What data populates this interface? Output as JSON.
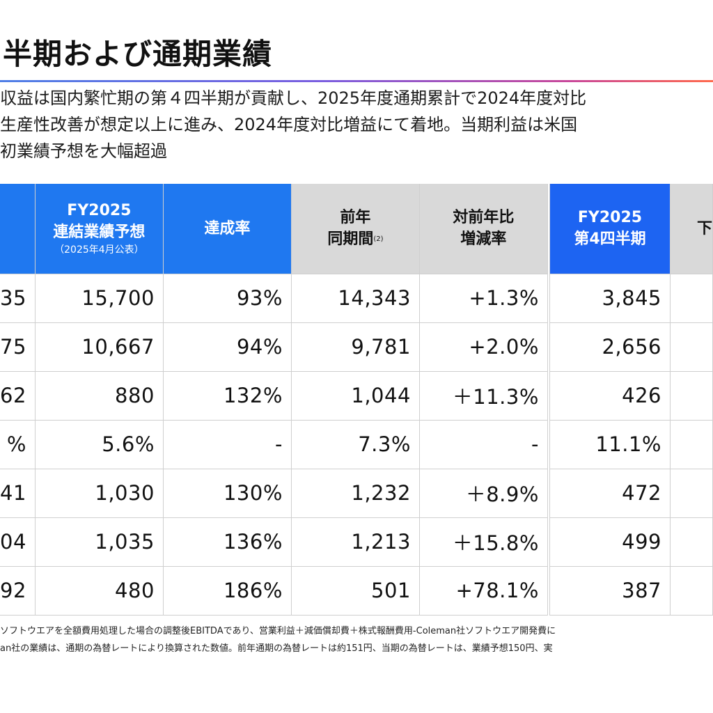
{
  "page": {
    "title": "半期および通期業績",
    "summary_lines": [
      "収益は国内繁忙期の第４四半期が貢献し、2025年度通期累計で2024年度対比",
      "生産性改善が想定以上に進み、2024年度対比増益にて着地。当期利益は米国",
      "初業績予想を大幅超過"
    ]
  },
  "main_table": {
    "headers": [
      {
        "label": ""
      },
      {
        "line1": "FY2025",
        "line2": "連結業績予想",
        "sub": "（2025年4月公表）"
      },
      {
        "label": "達成率"
      },
      {
        "line1": "前年",
        "line2": "同期間",
        "sup": "(2)"
      },
      {
        "line1": "対前年比",
        "line2": "増減率"
      }
    ],
    "rows": [
      [
        "35",
        "15,700",
        "93%",
        "14,343",
        "+1.3%"
      ],
      [
        "75",
        "10,667",
        "94%",
        "9,781",
        "+2.0%"
      ],
      [
        "62",
        "880",
        "132%",
        "1,044",
        "＋11.3%"
      ],
      [
        "%",
        "5.6%",
        "-",
        "7.3%",
        "-"
      ],
      [
        "41",
        "1,030",
        "130%",
        "1,232",
        "＋8.9%"
      ],
      [
        "04",
        "1,035",
        "136%",
        "1,213",
        "＋15.8%"
      ],
      [
        "92",
        "480",
        "186%",
        "501",
        "+78.1%"
      ]
    ]
  },
  "q4_table": {
    "headers": [
      {
        "line1": "FY2025",
        "line2": "第4四半期"
      },
      {
        "label": "下"
      }
    ],
    "rows": [
      [
        "3,845",
        ""
      ],
      [
        "2,656",
        ""
      ],
      [
        "426",
        ""
      ],
      [
        "11.1%",
        ""
      ],
      [
        "472",
        ""
      ],
      [
        "499",
        ""
      ],
      [
        "387",
        ""
      ]
    ]
  },
  "notes": [
    "ソフトウエアを全額費用処理した場合の調整後EBITDAであり、営業利益＋減価償却費＋株式報酬費用-Coleman社ソフトウエア開発費に",
    "an社の業績は、通期の為替レートにより換算された数値。前年通期の為替レートは約151円、当期の為替レートは、業績予想150円、実"
  ],
  "colors": {
    "header_blue": "#1f78f0",
    "header_blue_q4": "#1d64f2",
    "header_gray": "#d9d9d9",
    "rule_gradient": [
      "#4f7fe6",
      "#7a5ee0",
      "#c9489a",
      "#ff6a4d"
    ]
  }
}
